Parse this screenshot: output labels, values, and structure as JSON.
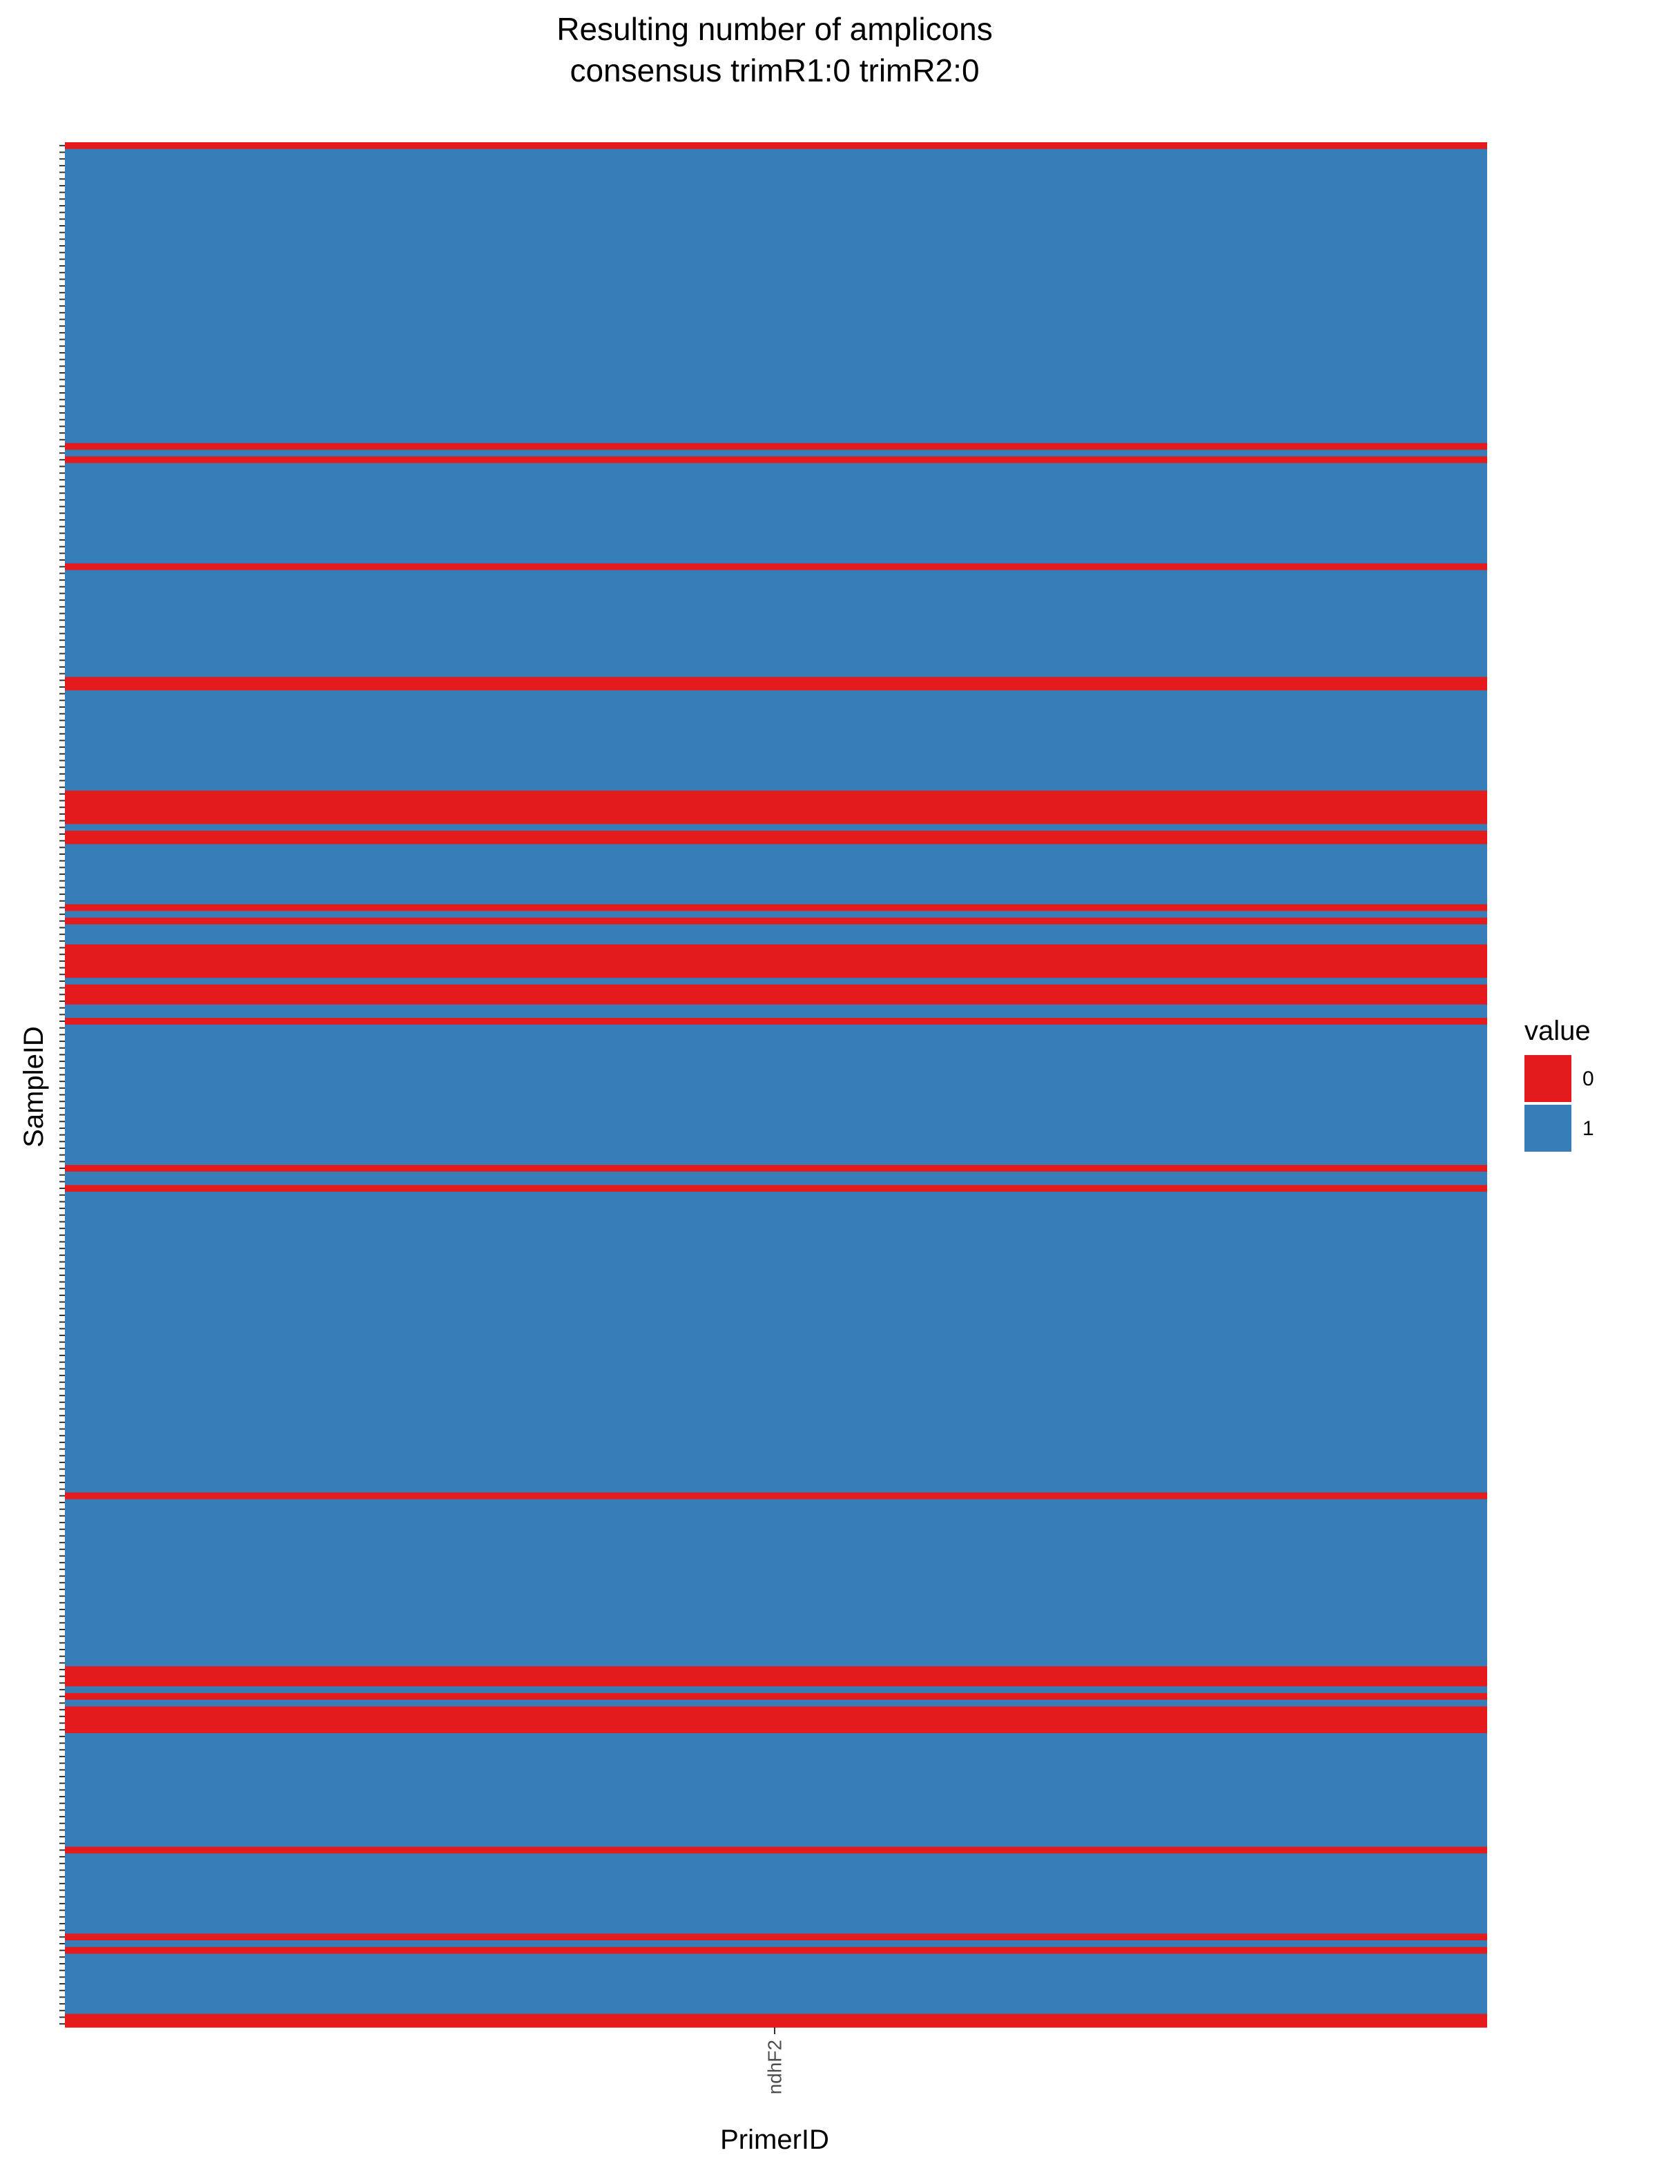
{
  "chart_data": {
    "type": "heatmap",
    "title": "Resulting number of amplicons",
    "subtitle": "consensus trimR1:0 trimR2:0",
    "xlabel": "PrimerID",
    "ylabel": "SampleID",
    "x_categories": [
      "ndhF2"
    ],
    "sample_count": 282,
    "zero_sample_indices": [
      0,
      45,
      47,
      63,
      80,
      81,
      97,
      98,
      99,
      100,
      101,
      103,
      104,
      114,
      116,
      120,
      121,
      122,
      123,
      124,
      126,
      127,
      128,
      131,
      153,
      156,
      202,
      228,
      229,
      230,
      232,
      234,
      235,
      236,
      237,
      255,
      268,
      270,
      280,
      281
    ],
    "legend": {
      "title": "value",
      "position": "right",
      "entries": [
        {
          "label": "0",
          "value": 0,
          "color": "#e41a1c"
        },
        {
          "label": "1",
          "value": 1,
          "color": "#377eb8"
        }
      ]
    },
    "grid": false
  }
}
